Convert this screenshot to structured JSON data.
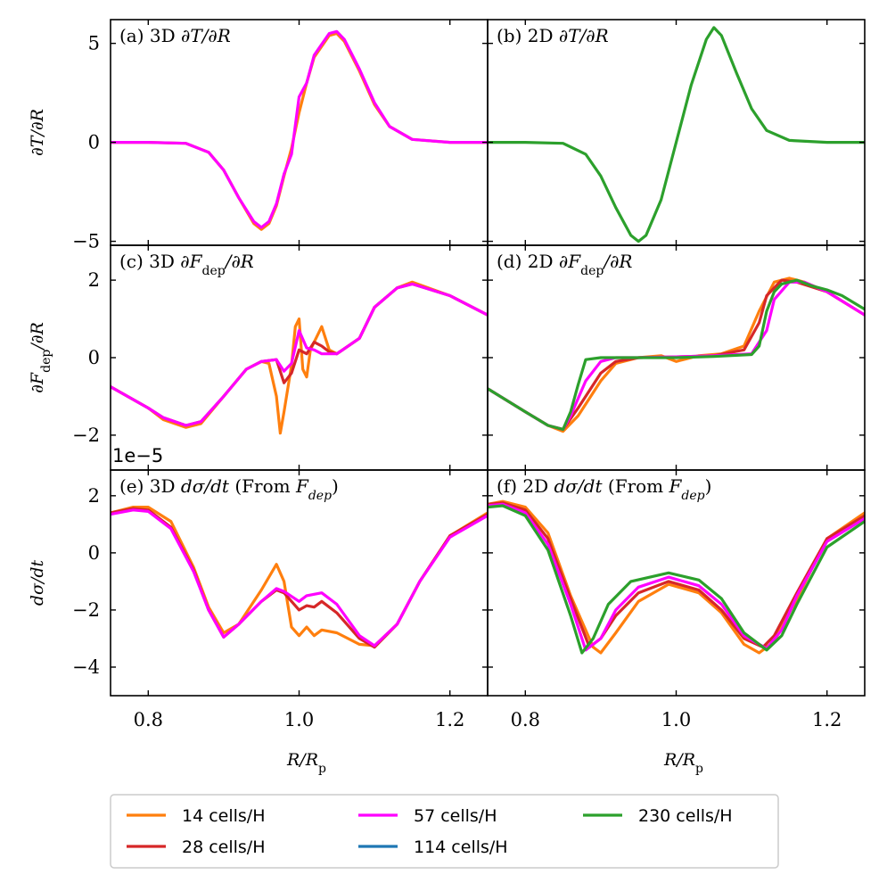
{
  "figure": {
    "xlabel": "R/R",
    "xlabel_sub": "p",
    "offset_text": "1e−5"
  },
  "legend": {
    "entries": [
      {
        "label": "14 cells/H",
        "color": "#ff7f0e"
      },
      {
        "label": "28 cells/H",
        "color": "#d62728"
      },
      {
        "label": "57 cells/H",
        "color": "#ff00ff"
      },
      {
        "label": "114 cells/H",
        "color": "#1f77b4"
      },
      {
        "label": "230 cells/H",
        "color": "#2ca02c"
      }
    ]
  },
  "chart_data": [
    {
      "id": "a",
      "type": "line",
      "title_prefix": "(a) 3D",
      "title_math": "∂T/∂R",
      "ylabel": "∂T/∂R",
      "xlim": [
        0.75,
        1.25
      ],
      "ylim": [
        -5.2,
        6.2
      ],
      "yticks": [
        -5,
        0,
        5
      ],
      "xticks": [
        0.8,
        1.0,
        1.2
      ],
      "show_xticklabels": false,
      "series": [
        {
          "name": "14 cells/H",
          "color": "#ff7f0e",
          "x": [
            0.75,
            0.8,
            0.85,
            0.88,
            0.9,
            0.92,
            0.94,
            0.95,
            0.96,
            0.97,
            0.98,
            0.99,
            1.0,
            1.01,
            1.02,
            1.04,
            1.05,
            1.06,
            1.08,
            1.1,
            1.12,
            1.15,
            1.2,
            1.25
          ],
          "y": [
            0,
            0,
            -0.05,
            -0.5,
            -1.4,
            -2.8,
            -4.1,
            -4.4,
            -4.1,
            -3.2,
            -1.7,
            -0.3,
            1.5,
            3.0,
            4.3,
            5.4,
            5.5,
            5.1,
            3.6,
            1.9,
            0.8,
            0.15,
            0,
            0
          ]
        },
        {
          "name": "57 cells/H",
          "color": "#ff00ff",
          "x": [
            0.75,
            0.8,
            0.85,
            0.88,
            0.9,
            0.92,
            0.94,
            0.95,
            0.96,
            0.97,
            0.98,
            0.99,
            1.0,
            1.01,
            1.02,
            1.04,
            1.05,
            1.06,
            1.08,
            1.1,
            1.12,
            1.15,
            1.2,
            1.25
          ],
          "y": [
            0,
            0,
            -0.05,
            -0.5,
            -1.4,
            -2.8,
            -4.0,
            -4.3,
            -4.0,
            -3.1,
            -1.6,
            -0.6,
            2.3,
            3.0,
            4.4,
            5.5,
            5.6,
            5.2,
            3.7,
            2.0,
            0.8,
            0.15,
            0,
            0
          ]
        }
      ]
    },
    {
      "id": "b",
      "type": "line",
      "title_prefix": "(b) 2D",
      "title_math": "∂T/∂R",
      "ylabel": "",
      "xlim": [
        0.75,
        1.25
      ],
      "ylim": [
        -5.2,
        6.2
      ],
      "yticks": [
        -5,
        0,
        5
      ],
      "xticks": [
        0.8,
        1.0,
        1.2
      ],
      "show_xticklabels": false,
      "series": [
        {
          "name": "230 cells/H",
          "color": "#2ca02c",
          "x": [
            0.75,
            0.8,
            0.85,
            0.88,
            0.9,
            0.92,
            0.94,
            0.95,
            0.96,
            0.98,
            1.0,
            1.02,
            1.04,
            1.05,
            1.06,
            1.08,
            1.1,
            1.12,
            1.15,
            1.2,
            1.25
          ],
          "y": [
            0,
            0,
            -0.05,
            -0.6,
            -1.7,
            -3.3,
            -4.7,
            -5.0,
            -4.7,
            -2.9,
            0,
            2.9,
            5.2,
            5.8,
            5.4,
            3.5,
            1.7,
            0.6,
            0.1,
            0,
            0
          ]
        }
      ]
    },
    {
      "id": "c",
      "type": "line",
      "title_prefix": "(c) 3D",
      "title_math": "∂F",
      "ylabel": "∂F",
      "xlim": [
        0.75,
        1.25
      ],
      "ylim": [
        -2.9,
        2.9
      ],
      "yticks": [
        -2,
        0,
        2
      ],
      "xticks": [
        0.8,
        1.0,
        1.2
      ],
      "show_xticklabels": false,
      "series": [
        {
          "name": "14 cells/H",
          "color": "#ff7f0e",
          "x": [
            0.75,
            0.8,
            0.82,
            0.85,
            0.87,
            0.9,
            0.93,
            0.95,
            0.96,
            0.97,
            0.975,
            0.98,
            0.99,
            0.995,
            1.0,
            1.005,
            1.01,
            1.015,
            1.02,
            1.03,
            1.04,
            1.05,
            1.08,
            1.1,
            1.13,
            1.15,
            1.2,
            1.25
          ],
          "y": [
            -0.75,
            -1.3,
            -1.6,
            -1.8,
            -1.7,
            -1.0,
            -0.3,
            -0.1,
            -0.15,
            -1.0,
            -1.95,
            -1.4,
            -0.2,
            0.8,
            1.0,
            -0.3,
            -0.5,
            0.2,
            0.4,
            0.8,
            0.2,
            0.1,
            0.5,
            1.3,
            1.8,
            1.95,
            1.6,
            1.1
          ]
        },
        {
          "name": "28 cells/H",
          "color": "#d62728",
          "x": [
            0.75,
            0.8,
            0.82,
            0.85,
            0.87,
            0.9,
            0.93,
            0.95,
            0.97,
            0.98,
            0.99,
            1.0,
            1.01,
            1.02,
            1.03,
            1.04,
            1.05,
            1.08,
            1.1,
            1.13,
            1.15,
            1.2,
            1.25
          ],
          "y": [
            -0.75,
            -1.3,
            -1.55,
            -1.75,
            -1.65,
            -1.0,
            -0.3,
            -0.1,
            -0.05,
            -0.65,
            -0.4,
            0.2,
            0.1,
            0.4,
            0.3,
            0.15,
            0.1,
            0.5,
            1.3,
            1.8,
            1.9,
            1.6,
            1.1
          ]
        },
        {
          "name": "57 cells/H",
          "color": "#ff00ff",
          "x": [
            0.75,
            0.8,
            0.82,
            0.85,
            0.87,
            0.9,
            0.93,
            0.95,
            0.97,
            0.98,
            0.99,
            1.0,
            1.01,
            1.02,
            1.03,
            1.04,
            1.05,
            1.08,
            1.1,
            1.13,
            1.15,
            1.2,
            1.25
          ],
          "y": [
            -0.75,
            -1.3,
            -1.55,
            -1.75,
            -1.65,
            -1.0,
            -0.3,
            -0.1,
            -0.05,
            -0.35,
            -0.15,
            0.7,
            0.25,
            0.2,
            0.1,
            0.1,
            0.1,
            0.5,
            1.3,
            1.8,
            1.9,
            1.6,
            1.1
          ]
        }
      ]
    },
    {
      "id": "d",
      "type": "line",
      "title_prefix": "(d) 2D",
      "title_math": "∂F",
      "ylabel": "",
      "xlim": [
        0.75,
        1.25
      ],
      "ylim": [
        -2.9,
        2.9
      ],
      "yticks": [
        -2,
        0,
        2
      ],
      "xticks": [
        0.8,
        1.0,
        1.2
      ],
      "show_xticklabels": false,
      "series": [
        {
          "name": "14 cells/H",
          "color": "#ff7f0e",
          "x": [
            0.75,
            0.8,
            0.83,
            0.85,
            0.87,
            0.9,
            0.92,
            0.95,
            0.98,
            1.0,
            1.03,
            1.06,
            1.09,
            1.11,
            1.13,
            1.15,
            1.17,
            1.2,
            1.25
          ],
          "y": [
            -0.8,
            -1.4,
            -1.75,
            -1.9,
            -1.5,
            -0.6,
            -0.15,
            0.0,
            0.05,
            -0.1,
            0.05,
            0.1,
            0.3,
            1.2,
            1.95,
            2.05,
            1.95,
            1.7,
            1.1
          ]
        },
        {
          "name": "28 cells/H",
          "color": "#d62728",
          "x": [
            0.75,
            0.8,
            0.83,
            0.85,
            0.87,
            0.9,
            0.92,
            0.95,
            1.0,
            1.05,
            1.09,
            1.11,
            1.12,
            1.14,
            1.16,
            1.2,
            1.25
          ],
          "y": [
            -0.8,
            -1.4,
            -1.75,
            -1.85,
            -1.3,
            -0.4,
            -0.1,
            0.0,
            0.02,
            0.05,
            0.2,
            0.9,
            1.6,
            2.0,
            1.95,
            1.7,
            1.1
          ]
        },
        {
          "name": "57 cells/H",
          "color": "#ff00ff",
          "x": [
            0.75,
            0.8,
            0.83,
            0.85,
            0.86,
            0.88,
            0.9,
            0.92,
            0.95,
            1.0,
            1.05,
            1.1,
            1.12,
            1.13,
            1.15,
            1.17,
            1.2,
            1.25
          ],
          "y": [
            -0.8,
            -1.4,
            -1.75,
            -1.85,
            -1.5,
            -0.6,
            -0.1,
            0.0,
            0.0,
            0.02,
            0.05,
            0.1,
            0.7,
            1.5,
            1.95,
            1.95,
            1.7,
            1.1
          ]
        },
        {
          "name": "230 cells/H",
          "color": "#2ca02c",
          "x": [
            0.75,
            0.8,
            0.83,
            0.85,
            0.86,
            0.87,
            0.88,
            0.9,
            0.95,
            1.0,
            1.05,
            1.1,
            1.11,
            1.12,
            1.13,
            1.14,
            1.16,
            1.18,
            1.2,
            1.22,
            1.25
          ],
          "y": [
            -0.8,
            -1.4,
            -1.75,
            -1.85,
            -1.4,
            -0.7,
            -0.05,
            0.0,
            0.0,
            0.0,
            0.03,
            0.08,
            0.3,
            1.2,
            1.7,
            1.9,
            2.0,
            1.85,
            1.75,
            1.6,
            1.25
          ]
        }
      ]
    },
    {
      "id": "e",
      "type": "line",
      "title_prefix": "(e) 3D",
      "title_math": "dσ/dt",
      "ylabel": "dσ/dt",
      "xlim": [
        0.75,
        1.25
      ],
      "ylim": [
        -5.0,
        2.9
      ],
      "yticks": [
        -4,
        -2,
        0,
        2
      ],
      "xticks": [
        0.8,
        1.0,
        1.2
      ],
      "show_xticklabels": true,
      "series": [
        {
          "name": "14 cells/H",
          "color": "#ff7f0e",
          "x": [
            0.75,
            0.78,
            0.8,
            0.83,
            0.86,
            0.88,
            0.9,
            0.92,
            0.95,
            0.97,
            0.98,
            0.99,
            1.0,
            1.01,
            1.02,
            1.03,
            1.05,
            1.08,
            1.1,
            1.13,
            1.16,
            1.2,
            1.25
          ],
          "y": [
            1.4,
            1.6,
            1.6,
            1.1,
            -0.5,
            -1.9,
            -2.8,
            -2.5,
            -1.3,
            -0.4,
            -1.0,
            -2.6,
            -2.9,
            -2.6,
            -2.9,
            -2.7,
            -2.8,
            -3.2,
            -3.25,
            -2.5,
            -1.0,
            0.6,
            1.4
          ]
        },
        {
          "name": "28 cells/H",
          "color": "#d62728",
          "x": [
            0.75,
            0.78,
            0.8,
            0.83,
            0.86,
            0.88,
            0.9,
            0.92,
            0.95,
            0.97,
            0.98,
            1.0,
            1.01,
            1.02,
            1.03,
            1.05,
            1.08,
            1.1,
            1.13,
            1.16,
            1.2,
            1.25
          ],
          "y": [
            1.4,
            1.55,
            1.5,
            0.9,
            -0.6,
            -2.0,
            -2.95,
            -2.5,
            -1.7,
            -1.3,
            -1.4,
            -2.0,
            -1.85,
            -1.9,
            -1.7,
            -2.1,
            -3.0,
            -3.3,
            -2.5,
            -1.0,
            0.6,
            1.35
          ]
        },
        {
          "name": "57 cells/H",
          "color": "#ff00ff",
          "x": [
            0.75,
            0.78,
            0.8,
            0.83,
            0.86,
            0.88,
            0.9,
            0.92,
            0.95,
            0.97,
            0.98,
            1.0,
            1.01,
            1.02,
            1.03,
            1.05,
            1.08,
            1.1,
            1.13,
            1.16,
            1.2,
            1.25
          ],
          "y": [
            1.35,
            1.5,
            1.45,
            0.85,
            -0.65,
            -2.0,
            -2.95,
            -2.5,
            -1.7,
            -1.25,
            -1.35,
            -1.7,
            -1.5,
            -1.45,
            -1.4,
            -1.8,
            -2.9,
            -3.25,
            -2.5,
            -1.0,
            0.55,
            1.3
          ]
        }
      ]
    },
    {
      "id": "f",
      "type": "line",
      "title_prefix": "(f) 2D",
      "title_math": "dσ/dt",
      "ylabel": "",
      "xlim": [
        0.75,
        1.25
      ],
      "ylim": [
        -5.0,
        2.9
      ],
      "yticks": [
        -4,
        -2,
        0,
        2
      ],
      "xticks": [
        0.8,
        1.0,
        1.2
      ],
      "show_xticklabels": true,
      "series": [
        {
          "name": "14 cells/H",
          "color": "#ff7f0e",
          "x": [
            0.75,
            0.77,
            0.8,
            0.83,
            0.86,
            0.89,
            0.9,
            0.92,
            0.95,
            0.99,
            1.03,
            1.06,
            1.09,
            1.11,
            1.13,
            1.16,
            1.2,
            1.25
          ],
          "y": [
            1.7,
            1.8,
            1.6,
            0.7,
            -1.5,
            -3.3,
            -3.5,
            -2.8,
            -1.7,
            -1.1,
            -1.4,
            -2.1,
            -3.2,
            -3.5,
            -3.1,
            -1.6,
            0.5,
            1.4
          ]
        },
        {
          "name": "28 cells/H",
          "color": "#d62728",
          "x": [
            0.75,
            0.77,
            0.8,
            0.83,
            0.86,
            0.885,
            0.9,
            0.92,
            0.95,
            0.99,
            1.03,
            1.06,
            1.09,
            1.115,
            1.13,
            1.16,
            1.2,
            1.25
          ],
          "y": [
            1.7,
            1.75,
            1.5,
            0.5,
            -1.6,
            -3.3,
            -3.0,
            -2.2,
            -1.4,
            -1.0,
            -1.3,
            -2.0,
            -3.0,
            -3.3,
            -2.9,
            -1.4,
            0.5,
            1.3
          ]
        },
        {
          "name": "57 cells/H",
          "color": "#ff00ff",
          "x": [
            0.75,
            0.77,
            0.8,
            0.83,
            0.86,
            0.88,
            0.9,
            0.92,
            0.95,
            0.99,
            1.03,
            1.06,
            1.09,
            1.12,
            1.14,
            1.16,
            1.2,
            1.25
          ],
          "y": [
            1.65,
            1.7,
            1.4,
            0.3,
            -1.8,
            -3.4,
            -3.0,
            -2.0,
            -1.2,
            -0.85,
            -1.15,
            -1.8,
            -2.9,
            -3.35,
            -2.7,
            -1.5,
            0.4,
            1.2
          ]
        },
        {
          "name": "230 cells/H",
          "color": "#2ca02c",
          "x": [
            0.75,
            0.77,
            0.8,
            0.83,
            0.86,
            0.875,
            0.89,
            0.91,
            0.94,
            0.99,
            1.03,
            1.06,
            1.09,
            1.12,
            1.14,
            1.16,
            1.2,
            1.25
          ],
          "y": [
            1.6,
            1.65,
            1.3,
            0.1,
            -2.2,
            -3.5,
            -3.0,
            -1.8,
            -1.0,
            -0.7,
            -0.95,
            -1.6,
            -2.8,
            -3.4,
            -2.9,
            -1.8,
            0.2,
            1.1
          ]
        }
      ]
    }
  ]
}
